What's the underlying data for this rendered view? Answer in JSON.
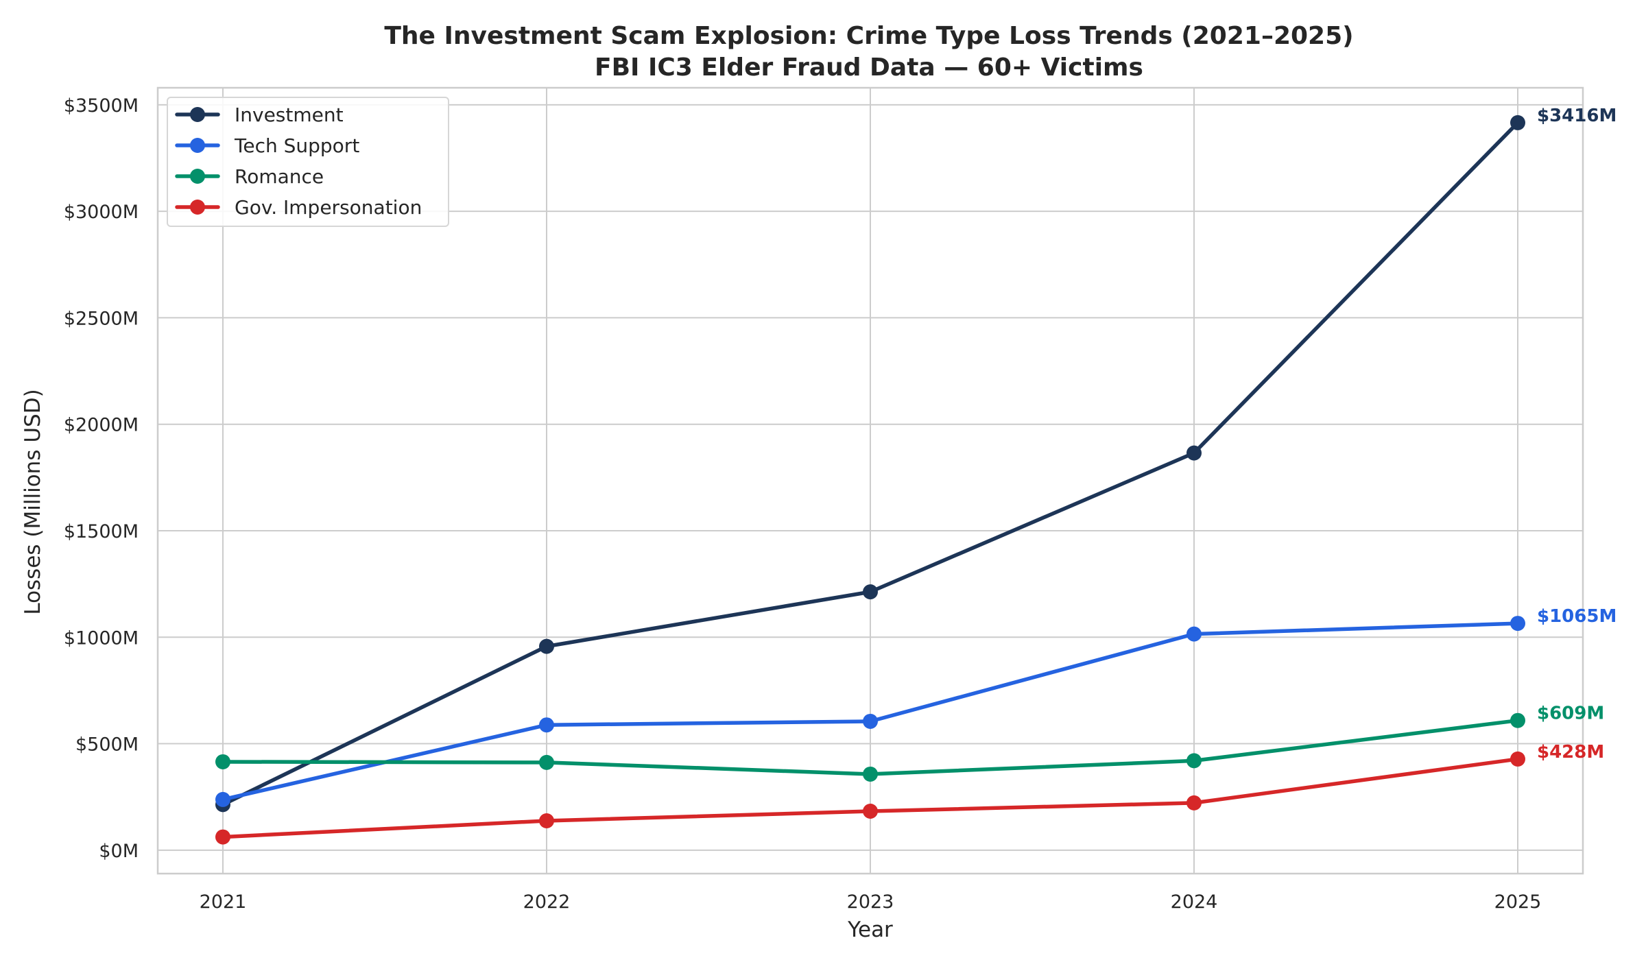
{
  "chart_data": {
    "type": "line",
    "title": "The Investment Scam Explosion: Crime Type Loss Trends (2021–2025)",
    "subtitle": "FBI IC3 Elder Fraud Data — 60+ Victims",
    "xlabel": "Year",
    "ylabel": "Losses (Millions USD)",
    "x": [
      "2021",
      "2022",
      "2023",
      "2024",
      "2025"
    ],
    "y_ticks": [
      0,
      500,
      1000,
      1500,
      2000,
      2500,
      3000,
      3500
    ],
    "y_tick_labels": [
      "$0M",
      "$500M",
      "$1000M",
      "$1500M",
      "$2000M",
      "$2500M",
      "$3000M",
      "$3500M"
    ],
    "ylim": [
      -110,
      3580
    ],
    "grid": true,
    "legend_position": "top-left",
    "series": [
      {
        "name": "Investment",
        "color": "#1d3557",
        "values": [
          214,
          957,
          1213,
          1865,
          3416
        ],
        "end_label": "$3416M"
      },
      {
        "name": "Tech Support",
        "color": "#2563e0",
        "values": [
          238,
          588,
          605,
          1015,
          1065
        ],
        "end_label": "$1065M"
      },
      {
        "name": "Romance",
        "color": "#03906a",
        "values": [
          415,
          412,
          357,
          420,
          609
        ],
        "end_label": "$609M"
      },
      {
        "name": "Gov. Impersonation",
        "color": "#d62728",
        "values": [
          62,
          138,
          183,
          222,
          428
        ],
        "end_label": "$428M"
      }
    ]
  }
}
